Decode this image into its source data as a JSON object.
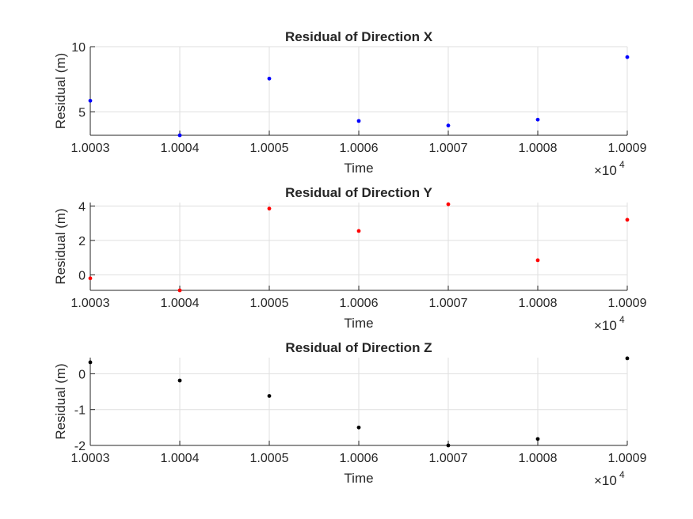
{
  "chart_data": [
    {
      "type": "scatter",
      "title": "Residual of Direction X",
      "xlabel": "Time",
      "ylabel": "Residual (m)",
      "x_exponent_label": "×10",
      "x_exponent_power": "4",
      "xlim": [
        1.0003,
        1.0009
      ],
      "ylim": [
        3.2,
        10
      ],
      "xticks": [
        "1.0003",
        "1.0004",
        "1.0005",
        "1.0006",
        "1.0007",
        "1.0008",
        "1.0009"
      ],
      "yticks": [
        {
          "value": 5,
          "label": "5"
        },
        {
          "value": 10,
          "label": "10"
        }
      ],
      "grid": true,
      "color": "#0000ff",
      "series": [
        {
          "x": [
            1.0003,
            1.0004,
            1.0005,
            1.0006,
            1.0007,
            1.0008,
            1.0009
          ],
          "values": [
            5.85,
            3.2,
            7.55,
            4.3,
            3.95,
            4.4,
            9.2
          ]
        }
      ]
    },
    {
      "type": "scatter",
      "title": "Residual of Direction Y",
      "xlabel": "Time",
      "ylabel": "Residual (m)",
      "x_exponent_label": "×10",
      "x_exponent_power": "4",
      "xlim": [
        1.0003,
        1.0009
      ],
      "ylim": [
        -0.9,
        4.2
      ],
      "xticks": [
        "1.0003",
        "1.0004",
        "1.0005",
        "1.0006",
        "1.0007",
        "1.0008",
        "1.0009"
      ],
      "yticks": [
        {
          "value": 0,
          "label": "0"
        },
        {
          "value": 2,
          "label": "2"
        },
        {
          "value": 4,
          "label": "4"
        }
      ],
      "grid": true,
      "color": "#ff0000",
      "series": [
        {
          "x": [
            1.0003,
            1.0004,
            1.0005,
            1.0006,
            1.0007,
            1.0008,
            1.0009
          ],
          "values": [
            -0.2,
            -0.9,
            3.85,
            2.55,
            4.1,
            0.85,
            3.2
          ]
        }
      ]
    },
    {
      "type": "scatter",
      "title": "Residual of Direction Z",
      "xlabel": "Time",
      "ylabel": "Residual (m)",
      "x_exponent_label": "×10",
      "x_exponent_power": "4",
      "xlim": [
        1.0003,
        1.0009
      ],
      "ylim": [
        -2,
        0.45
      ],
      "xticks": [
        "1.0003",
        "1.0004",
        "1.0005",
        "1.0006",
        "1.0007",
        "1.0008",
        "1.0009"
      ],
      "yticks": [
        {
          "value": -2,
          "label": "-2"
        },
        {
          "value": -1,
          "label": "-1"
        },
        {
          "value": 0,
          "label": "0"
        }
      ],
      "grid": true,
      "color": "#000000",
      "series": [
        {
          "x": [
            1.0003,
            1.0004,
            1.0005,
            1.0006,
            1.0007,
            1.0008,
            1.0009
          ],
          "values": [
            0.32,
            -0.19,
            -0.62,
            -1.5,
            -2.0,
            -1.82,
            0.43
          ]
        }
      ]
    }
  ]
}
